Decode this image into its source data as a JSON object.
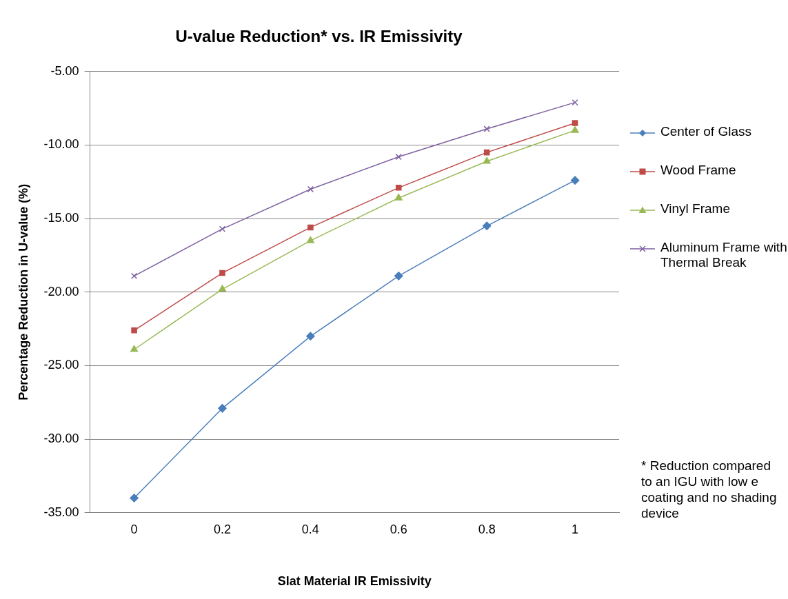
{
  "chart_data": {
    "type": "line",
    "title": "U-value Reduction* vs. IR Emissivity",
    "xlabel": "Slat Material IR Emissivity",
    "ylabel": "Percentage Reduction in U-value (%)",
    "categories": [
      "0",
      "0.2",
      "0.4",
      "0.6",
      "0.8",
      "1"
    ],
    "series": [
      {
        "name": "Center of Glass",
        "color": "#4a7ebb",
        "marker": "diamond",
        "values": [
          -34.0,
          -27.9,
          -23.0,
          -18.9,
          -15.5,
          -12.4
        ]
      },
      {
        "name": "Wood Frame",
        "color": "#be4b48",
        "marker": "square",
        "values": [
          -22.6,
          -18.7,
          -15.6,
          -12.9,
          -10.5,
          -8.5
        ]
      },
      {
        "name": "Vinyl Frame",
        "color": "#98b954",
        "marker": "triangle",
        "values": [
          -23.9,
          -19.8,
          -16.5,
          -13.6,
          -11.1,
          -9.0
        ]
      },
      {
        "name": "Aluminum Frame with Thermal Break",
        "color": "#7d60a0",
        "marker": "cross",
        "values": [
          -18.9,
          -15.7,
          -13.0,
          -10.8,
          -8.9,
          -7.1
        ]
      }
    ],
    "ylim": [
      -35,
      -5
    ],
    "yticks": [
      {
        "value": -35,
        "label": "-35.00"
      },
      {
        "value": -30,
        "label": "-30.00"
      },
      {
        "value": -25,
        "label": "-25.00"
      },
      {
        "value": -20,
        "label": "-20.00"
      },
      {
        "value": -15,
        "label": "-15.00"
      },
      {
        "value": -10,
        "label": "-10.00"
      },
      {
        "value": -5,
        "label": "-5.00"
      }
    ],
    "grid": "y",
    "legend": "right",
    "line_style": "solid",
    "annotations": [
      "* Reduction compared to an IGU with low e coating and no shading device"
    ]
  }
}
